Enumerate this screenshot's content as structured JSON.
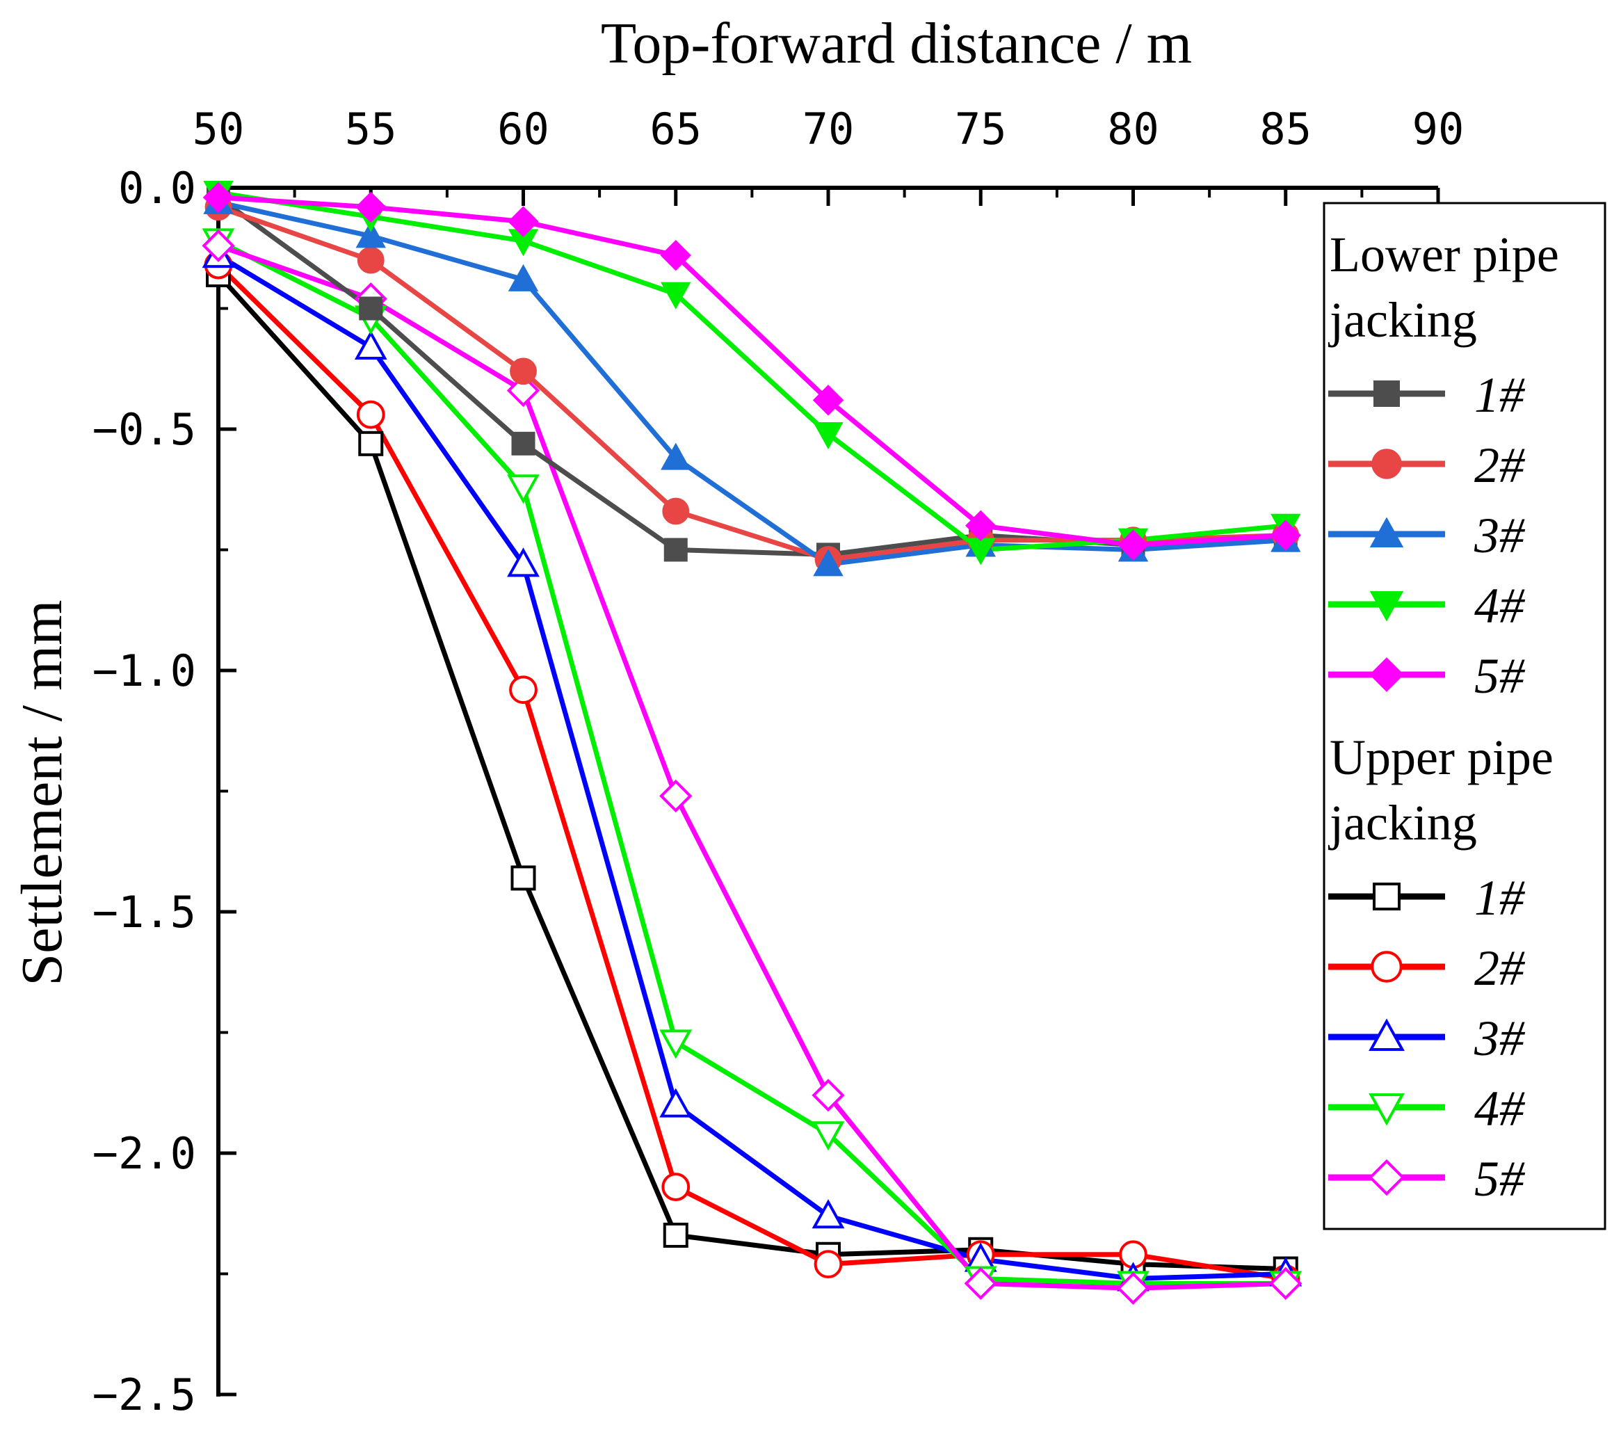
{
  "chart_data": {
    "type": "line",
    "xlabel": "Top-forward distance / m",
    "ylabel": "Settlement / mm",
    "xlim": [
      50,
      90
    ],
    "ylim": [
      -2.5,
      0.0
    ],
    "x_ticks": [
      "50",
      "55",
      "60",
      "65",
      "70",
      "75",
      "80",
      "85",
      "90"
    ],
    "y_ticks": [
      "0.0",
      "−0.5",
      "−1.0",
      "−1.5",
      "−2.0",
      "−2.5"
    ],
    "x_axis_position": "top",
    "grid": false,
    "legend": {
      "position": "right",
      "groups": [
        "Lower pipe jacking",
        "Upper pipe jacking"
      ]
    },
    "x": [
      50,
      55,
      60,
      65,
      70,
      75,
      80,
      85
    ],
    "series": [
      {
        "group": "Lower pipe jacking",
        "name": "1#",
        "color": "#4d4d4d",
        "marker": "square",
        "filled": true,
        "values": [
          -0.02,
          -0.25,
          -0.53,
          -0.75,
          -0.76,
          -0.72,
          -0.74,
          -0.73
        ]
      },
      {
        "group": "Lower pipe jacking",
        "name": "2#",
        "color": "#e84545",
        "marker": "circle",
        "filled": true,
        "values": [
          -0.04,
          -0.15,
          -0.38,
          -0.67,
          -0.77,
          -0.73,
          -0.73,
          -0.72
        ]
      },
      {
        "group": "Lower pipe jacking",
        "name": "3#",
        "color": "#1f6fd6",
        "marker": "triangle-up",
        "filled": true,
        "values": [
          -0.03,
          -0.1,
          -0.19,
          -0.56,
          -0.78,
          -0.74,
          -0.75,
          -0.73
        ]
      },
      {
        "group": "Lower pipe jacking",
        "name": "4#",
        "color": "#00ee00",
        "marker": "triangle-down",
        "filled": true,
        "values": [
          -0.01,
          -0.06,
          -0.11,
          -0.22,
          -0.51,
          -0.75,
          -0.73,
          -0.7
        ]
      },
      {
        "group": "Lower pipe jacking",
        "name": "5#",
        "color": "#ff00ff",
        "marker": "diamond",
        "filled": true,
        "values": [
          -0.02,
          -0.04,
          -0.07,
          -0.14,
          -0.44,
          -0.7,
          -0.74,
          -0.72
        ]
      },
      {
        "group": "Upper pipe jacking",
        "name": "1#",
        "color": "#000000",
        "marker": "square",
        "filled": false,
        "values": [
          -0.18,
          -0.53,
          -1.43,
          -2.17,
          -2.21,
          -2.2,
          -2.23,
          -2.24
        ]
      },
      {
        "group": "Upper pipe jacking",
        "name": "2#",
        "color": "#ff0000",
        "marker": "circle",
        "filled": false,
        "values": [
          -0.16,
          -0.47,
          -1.04,
          -2.07,
          -2.23,
          -2.21,
          -2.21,
          -2.26
        ]
      },
      {
        "group": "Upper pipe jacking",
        "name": "3#",
        "color": "#0000ff",
        "marker": "triangle-up",
        "filled": false,
        "values": [
          -0.14,
          -0.33,
          -0.78,
          -1.9,
          -2.13,
          -2.22,
          -2.26,
          -2.25
        ]
      },
      {
        "group": "Upper pipe jacking",
        "name": "4#",
        "color": "#00ee00",
        "marker": "triangle-down",
        "filled": false,
        "values": [
          -0.11,
          -0.27,
          -0.62,
          -1.77,
          -1.96,
          -2.26,
          -2.27,
          -2.27
        ]
      },
      {
        "group": "Upper pipe jacking",
        "name": "5#",
        "color": "#ff00ff",
        "marker": "diamond",
        "filled": false,
        "values": [
          -0.12,
          -0.23,
          -0.42,
          -1.26,
          -1.88,
          -2.27,
          -2.28,
          -2.27
        ]
      }
    ]
  }
}
